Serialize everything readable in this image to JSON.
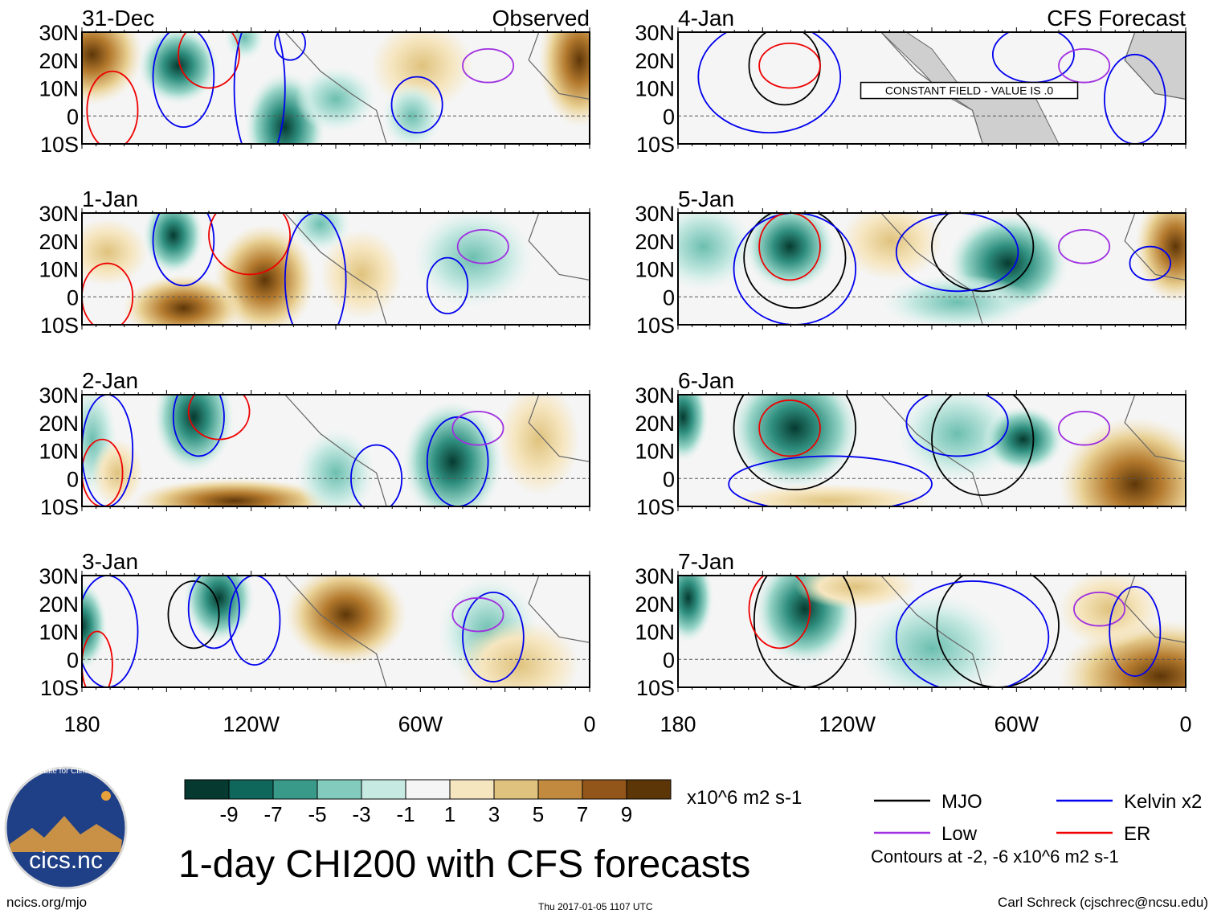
{
  "panels": {
    "left": [
      {
        "date": "31-Dec",
        "label": "Observed"
      },
      {
        "date": "1-Jan",
        "label": ""
      },
      {
        "date": "2-Jan",
        "label": ""
      },
      {
        "date": "3-Jan",
        "label": ""
      }
    ],
    "right": [
      {
        "date": "4-Jan",
        "label": "CFS Forecast",
        "note": "CONSTANT FIELD - VALUE IS .0"
      },
      {
        "date": "5-Jan",
        "label": ""
      },
      {
        "date": "6-Jan",
        "label": ""
      },
      {
        "date": "7-Jan",
        "label": ""
      }
    ]
  },
  "lat_labels": [
    "30N",
    "20N",
    "10N",
    "0",
    "10S"
  ],
  "lon_labels": [
    "180",
    "120W",
    "60W",
    "0"
  ],
  "colorbar": {
    "colors": [
      "#063a30",
      "#0f665a",
      "#3a9a8a",
      "#82cbbd",
      "#c6e9e2",
      "#f5f5f5",
      "#f6e6c0",
      "#dfc27d",
      "#c18a3e",
      "#93561a",
      "#5d3608"
    ],
    "ticks": [
      "-9",
      "-7",
      "-5",
      "-3",
      "-1",
      "1",
      "3",
      "5",
      "7",
      "9"
    ],
    "units": "x10^6 m2 s-1"
  },
  "legend": {
    "items": [
      {
        "label": "MJO",
        "color": "#000000"
      },
      {
        "label": "Kelvin x2",
        "color": "#0000ee"
      },
      {
        "label": "Low",
        "color": "#a030e0"
      },
      {
        "label": "ER",
        "color": "#ee0000"
      }
    ],
    "contours": "Contours at -2, -6 x10^6 m2 s-1"
  },
  "logo": {
    "text": "cics.nc",
    "ring": "Cooperative Institute for Climate and Satellites"
  },
  "title": "1-day CHI200 with CFS forecasts",
  "footer": {
    "left": "ncics.org/mjo",
    "middle": "Thu 2017-01-05 1107 UTC",
    "right": "Carl Schreck (cjschrec@ncsu.edu)"
  }
}
